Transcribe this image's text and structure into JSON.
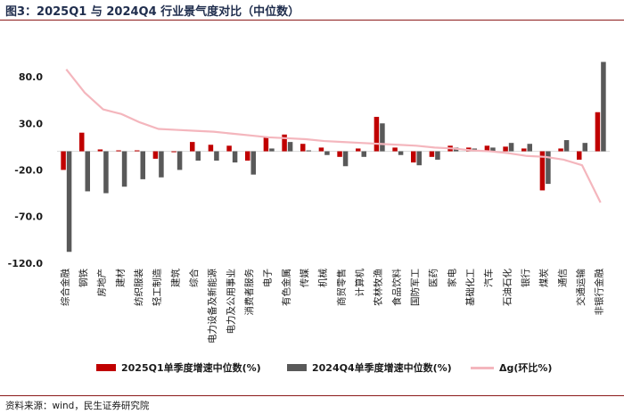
{
  "figure": {
    "title": "图3：2025Q1 与 2024Q4 行业景气度对比（中位数）",
    "source": "资料来源：wind，民生证券研究院"
  },
  "colors": {
    "series1": "#c00000",
    "series2": "#595959",
    "line": "#f4b6bd",
    "axis": "#d9d9d9"
  },
  "legend": {
    "series1": "2025Q1单季度增速中位数(%)",
    "series2": "2024Q4单季度增速中位数(%)",
    "line": "Δg(环比%)"
  },
  "chart_data": {
    "type": "bar",
    "categories": [
      "综合金融",
      "钢铁",
      "房地产",
      "建材",
      "纺织服装",
      "轻工制造",
      "建筑",
      "综合",
      "电力设备及新能源",
      "电力及公用事业",
      "消费者服务",
      "电子",
      "有色金属",
      "传媒",
      "机械",
      "商贸零售",
      "计算机",
      "农林牧渔",
      "食品饮料",
      "国防军工",
      "医药",
      "家电",
      "基础化工",
      "汽车",
      "石油石化",
      "银行",
      "煤炭",
      "通信",
      "交通运输",
      "非银行金融"
    ],
    "series": [
      {
        "name": "2025Q1单季度增速中位数(%)",
        "kind": "bar",
        "values": [
          -20,
          20,
          2,
          1,
          1,
          -8,
          -1,
          10,
          7,
          6,
          -10,
          15,
          18,
          8,
          4,
          -6,
          3,
          37,
          4,
          -12,
          -6,
          6,
          4,
          6,
          5,
          3,
          -42,
          3,
          -9,
          42
        ]
      },
      {
        "name": "2024Q4单季度增速中位数(%)",
        "kind": "bar",
        "values": [
          -108,
          -43,
          -45,
          -38,
          -30,
          -28,
          -20,
          -10,
          -10,
          -12,
          -25,
          3,
          10,
          1,
          -4,
          -16,
          -6,
          30,
          -4,
          -15,
          -9,
          4,
          3,
          4,
          9,
          8,
          -35,
          12,
          9,
          96
        ]
      },
      {
        "name": "Δg(环比%)",
        "kind": "line",
        "values": [
          88,
          63,
          45,
          40,
          31,
          24,
          23,
          22,
          21,
          19,
          17,
          15,
          14,
          13,
          11,
          10,
          9,
          8,
          7,
          6,
          4,
          3,
          1,
          0,
          -2,
          -5,
          -6,
          -9,
          -15,
          -55
        ]
      }
    ],
    "yticks": [
      80.0,
      30.0,
      -20.0,
      -70.0,
      -120.0
    ],
    "ylim": [
      -125,
      105
    ],
    "legend_position": "bottom",
    "grid": false
  }
}
